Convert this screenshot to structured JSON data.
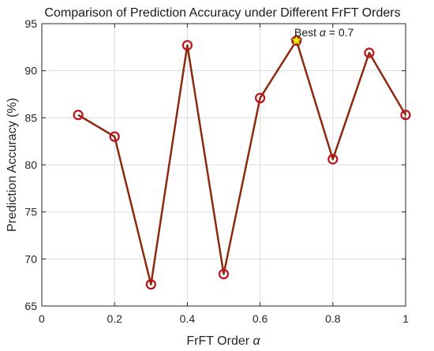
{
  "chart_data": {
    "type": "line",
    "title": "Comparison of Prediction Accuracy under Different FrFT Orders",
    "xlabel": "FrFT Order",
    "xlabel_symbol": "α",
    "ylabel": "Prediction Accuracy (%)",
    "xlim": [
      0,
      1
    ],
    "ylim": [
      65,
      95
    ],
    "x_ticks": [
      "0",
      "0.2",
      "0.4",
      "0.6",
      "0.8",
      "1"
    ],
    "x_tick_values": [
      0,
      0.2,
      0.4,
      0.6,
      0.8,
      1
    ],
    "y_ticks": [
      "65",
      "70",
      "75",
      "80",
      "85",
      "90",
      "95"
    ],
    "y_tick_values": [
      65,
      70,
      75,
      80,
      85,
      90,
      95
    ],
    "grid": true,
    "series": [
      {
        "x": [
          0.1,
          0.2,
          0.3,
          0.4,
          0.5,
          0.6,
          0.7,
          0.8,
          0.9,
          1.0
        ],
        "values": [
          85.3,
          83.0,
          67.3,
          92.7,
          68.4,
          87.1,
          93.2,
          80.6,
          91.9,
          85.3
        ],
        "line_color": "#8B2A0E",
        "marker_color": "#C0121C"
      }
    ],
    "best": {
      "x": 0.7,
      "y": 93.2,
      "label_prefix": "Best",
      "label_symbol": "α",
      "label_suffix": "= 0.7",
      "marker_fill": "#FFF200"
    }
  }
}
